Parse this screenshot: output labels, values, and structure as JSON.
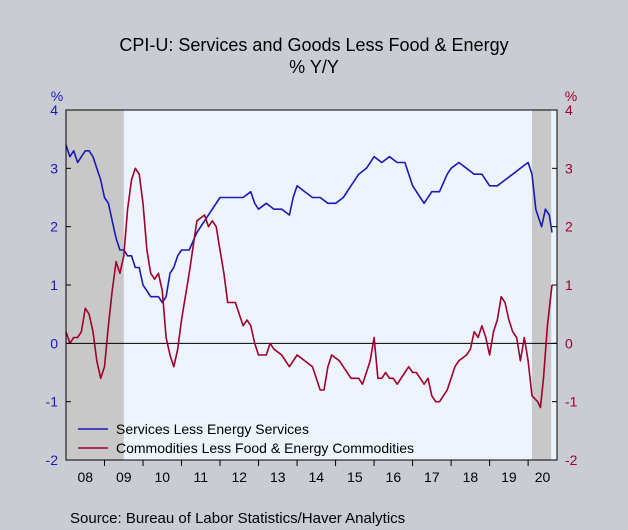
{
  "chart_data": {
    "type": "line",
    "title": "CPI-U: Services and Goods Less Food & Energy",
    "subtitle": "% Y/Y",
    "ylabel_left": "%",
    "ylabel_right": "%",
    "source": "Source:  Bureau of Labor Statistics/Haver Analytics",
    "x_range": [
      2008.0,
      2020.75
    ],
    "ylim": [
      -2,
      4
    ],
    "y_ticks": [
      -2,
      -1,
      0,
      1,
      2,
      3,
      4
    ],
    "x_tick_labels": [
      "08",
      "09",
      "10",
      "11",
      "12",
      "13",
      "14",
      "15",
      "16",
      "17",
      "18",
      "19",
      "20"
    ],
    "recession_shading": [
      [
        2008.0,
        2009.5
      ],
      [
        2020.1,
        2020.6
      ]
    ],
    "legend_placement": "bottom-left",
    "colors": {
      "services": "#1a1ab4",
      "commodities": "#a0002a",
      "recession": "#c8c8c8",
      "plot_bg": "#eef4fd",
      "left_axis": "#1a1ab4",
      "right_axis": "#a0002a"
    },
    "series": [
      {
        "name": "Services Less Energy Services",
        "key": "services",
        "points": [
          [
            2008.0,
            3.4
          ],
          [
            2008.1,
            3.2
          ],
          [
            2008.2,
            3.3
          ],
          [
            2008.3,
            3.1
          ],
          [
            2008.4,
            3.2
          ],
          [
            2008.5,
            3.3
          ],
          [
            2008.6,
            3.3
          ],
          [
            2008.7,
            3.2
          ],
          [
            2008.8,
            3.0
          ],
          [
            2008.9,
            2.8
          ],
          [
            2009.0,
            2.5
          ],
          [
            2009.1,
            2.4
          ],
          [
            2009.2,
            2.1
          ],
          [
            2009.3,
            1.8
          ],
          [
            2009.4,
            1.6
          ],
          [
            2009.5,
            1.6
          ],
          [
            2009.6,
            1.5
          ],
          [
            2009.7,
            1.5
          ],
          [
            2009.8,
            1.3
          ],
          [
            2009.9,
            1.3
          ],
          [
            2010.0,
            1.0
          ],
          [
            2010.1,
            0.9
          ],
          [
            2010.2,
            0.8
          ],
          [
            2010.3,
            0.8
          ],
          [
            2010.4,
            0.8
          ],
          [
            2010.5,
            0.7
          ],
          [
            2010.6,
            0.8
          ],
          [
            2010.7,
            1.2
          ],
          [
            2010.8,
            1.3
          ],
          [
            2010.9,
            1.5
          ],
          [
            2011.0,
            1.6
          ],
          [
            2011.2,
            1.6
          ],
          [
            2011.4,
            1.9
          ],
          [
            2011.6,
            2.1
          ],
          [
            2011.8,
            2.3
          ],
          [
            2012.0,
            2.5
          ],
          [
            2012.2,
            2.5
          ],
          [
            2012.4,
            2.5
          ],
          [
            2012.6,
            2.5
          ],
          [
            2012.8,
            2.6
          ],
          [
            2012.9,
            2.4
          ],
          [
            2013.0,
            2.3
          ],
          [
            2013.2,
            2.4
          ],
          [
            2013.4,
            2.3
          ],
          [
            2013.6,
            2.3
          ],
          [
            2013.8,
            2.2
          ],
          [
            2013.9,
            2.5
          ],
          [
            2014.0,
            2.7
          ],
          [
            2014.2,
            2.6
          ],
          [
            2014.4,
            2.5
          ],
          [
            2014.6,
            2.5
          ],
          [
            2014.8,
            2.4
          ],
          [
            2015.0,
            2.4
          ],
          [
            2015.2,
            2.5
          ],
          [
            2015.4,
            2.7
          ],
          [
            2015.6,
            2.9
          ],
          [
            2015.8,
            3.0
          ],
          [
            2016.0,
            3.2
          ],
          [
            2016.2,
            3.1
          ],
          [
            2016.4,
            3.2
          ],
          [
            2016.6,
            3.1
          ],
          [
            2016.8,
            3.1
          ],
          [
            2017.0,
            2.7
          ],
          [
            2017.2,
            2.5
          ],
          [
            2017.3,
            2.4
          ],
          [
            2017.5,
            2.6
          ],
          [
            2017.7,
            2.6
          ],
          [
            2017.9,
            2.9
          ],
          [
            2018.0,
            3.0
          ],
          [
            2018.2,
            3.1
          ],
          [
            2018.4,
            3.0
          ],
          [
            2018.6,
            2.9
          ],
          [
            2018.8,
            2.9
          ],
          [
            2019.0,
            2.7
          ],
          [
            2019.2,
            2.7
          ],
          [
            2019.4,
            2.8
          ],
          [
            2019.6,
            2.9
          ],
          [
            2019.8,
            3.0
          ],
          [
            2020.0,
            3.1
          ],
          [
            2020.1,
            2.9
          ],
          [
            2020.2,
            2.3
          ],
          [
            2020.35,
            2.0
          ],
          [
            2020.45,
            2.3
          ],
          [
            2020.55,
            2.2
          ],
          [
            2020.62,
            1.9
          ]
        ]
      },
      {
        "name": "Commodities Less Food & Energy Commodities",
        "key": "commodities",
        "points": [
          [
            2008.0,
            0.2
          ],
          [
            2008.1,
            0.0
          ],
          [
            2008.2,
            0.1
          ],
          [
            2008.3,
            0.1
          ],
          [
            2008.4,
            0.2
          ],
          [
            2008.5,
            0.6
          ],
          [
            2008.6,
            0.5
          ],
          [
            2008.7,
            0.2
          ],
          [
            2008.8,
            -0.3
          ],
          [
            2008.9,
            -0.6
          ],
          [
            2009.0,
            -0.4
          ],
          [
            2009.1,
            0.3
          ],
          [
            2009.2,
            0.9
          ],
          [
            2009.3,
            1.4
          ],
          [
            2009.4,
            1.2
          ],
          [
            2009.5,
            1.5
          ],
          [
            2009.6,
            2.3
          ],
          [
            2009.7,
            2.8
          ],
          [
            2009.8,
            3.0
          ],
          [
            2009.9,
            2.9
          ],
          [
            2010.0,
            2.4
          ],
          [
            2010.1,
            1.6
          ],
          [
            2010.2,
            1.2
          ],
          [
            2010.3,
            1.1
          ],
          [
            2010.4,
            1.2
          ],
          [
            2010.5,
            0.9
          ],
          [
            2010.6,
            0.1
          ],
          [
            2010.7,
            -0.2
          ],
          [
            2010.8,
            -0.4
          ],
          [
            2010.9,
            -0.1
          ],
          [
            2011.0,
            0.4
          ],
          [
            2011.2,
            1.2
          ],
          [
            2011.4,
            2.1
          ],
          [
            2011.6,
            2.2
          ],
          [
            2011.7,
            2.0
          ],
          [
            2011.8,
            2.1
          ],
          [
            2011.9,
            2.0
          ],
          [
            2012.0,
            1.6
          ],
          [
            2012.1,
            1.2
          ],
          [
            2012.2,
            0.7
          ],
          [
            2012.4,
            0.7
          ],
          [
            2012.6,
            0.3
          ],
          [
            2012.7,
            0.4
          ],
          [
            2012.8,
            0.3
          ],
          [
            2012.9,
            0.0
          ],
          [
            2013.0,
            -0.2
          ],
          [
            2013.2,
            -0.2
          ],
          [
            2013.3,
            0.0
          ],
          [
            2013.4,
            -0.1
          ],
          [
            2013.6,
            -0.2
          ],
          [
            2013.7,
            -0.3
          ],
          [
            2013.8,
            -0.4
          ],
          [
            2014.0,
            -0.2
          ],
          [
            2014.2,
            -0.3
          ],
          [
            2014.4,
            -0.4
          ],
          [
            2014.5,
            -0.6
          ],
          [
            2014.6,
            -0.8
          ],
          [
            2014.7,
            -0.8
          ],
          [
            2014.8,
            -0.4
          ],
          [
            2014.9,
            -0.2
          ],
          [
            2015.1,
            -0.3
          ],
          [
            2015.2,
            -0.4
          ],
          [
            2015.4,
            -0.6
          ],
          [
            2015.6,
            -0.6
          ],
          [
            2015.7,
            -0.7
          ],
          [
            2015.8,
            -0.5
          ],
          [
            2015.9,
            -0.3
          ],
          [
            2016.0,
            0.1
          ],
          [
            2016.1,
            -0.6
          ],
          [
            2016.2,
            -0.6
          ],
          [
            2016.3,
            -0.5
          ],
          [
            2016.4,
            -0.6
          ],
          [
            2016.5,
            -0.6
          ],
          [
            2016.6,
            -0.7
          ],
          [
            2016.8,
            -0.5
          ],
          [
            2016.9,
            -0.4
          ],
          [
            2017.0,
            -0.5
          ],
          [
            2017.1,
            -0.5
          ],
          [
            2017.3,
            -0.7
          ],
          [
            2017.4,
            -0.6
          ],
          [
            2017.5,
            -0.9
          ],
          [
            2017.6,
            -1.0
          ],
          [
            2017.7,
            -1.0
          ],
          [
            2017.8,
            -0.9
          ],
          [
            2017.9,
            -0.8
          ],
          [
            2018.0,
            -0.6
          ],
          [
            2018.1,
            -0.4
          ],
          [
            2018.2,
            -0.3
          ],
          [
            2018.4,
            -0.2
          ],
          [
            2018.5,
            -0.1
          ],
          [
            2018.6,
            0.2
          ],
          [
            2018.7,
            0.1
          ],
          [
            2018.8,
            0.3
          ],
          [
            2018.9,
            0.1
          ],
          [
            2019.0,
            -0.2
          ],
          [
            2019.1,
            0.2
          ],
          [
            2019.2,
            0.4
          ],
          [
            2019.3,
            0.8
          ],
          [
            2019.4,
            0.7
          ],
          [
            2019.5,
            0.4
          ],
          [
            2019.6,
            0.2
          ],
          [
            2019.7,
            0.1
          ],
          [
            2019.8,
            -0.3
          ],
          [
            2019.9,
            0.1
          ],
          [
            2020.0,
            -0.3
          ],
          [
            2020.1,
            -0.9
          ],
          [
            2020.25,
            -1.0
          ],
          [
            2020.32,
            -1.1
          ],
          [
            2020.4,
            -0.6
          ],
          [
            2020.5,
            0.3
          ],
          [
            2020.62,
            1.0
          ]
        ]
      }
    ]
  }
}
